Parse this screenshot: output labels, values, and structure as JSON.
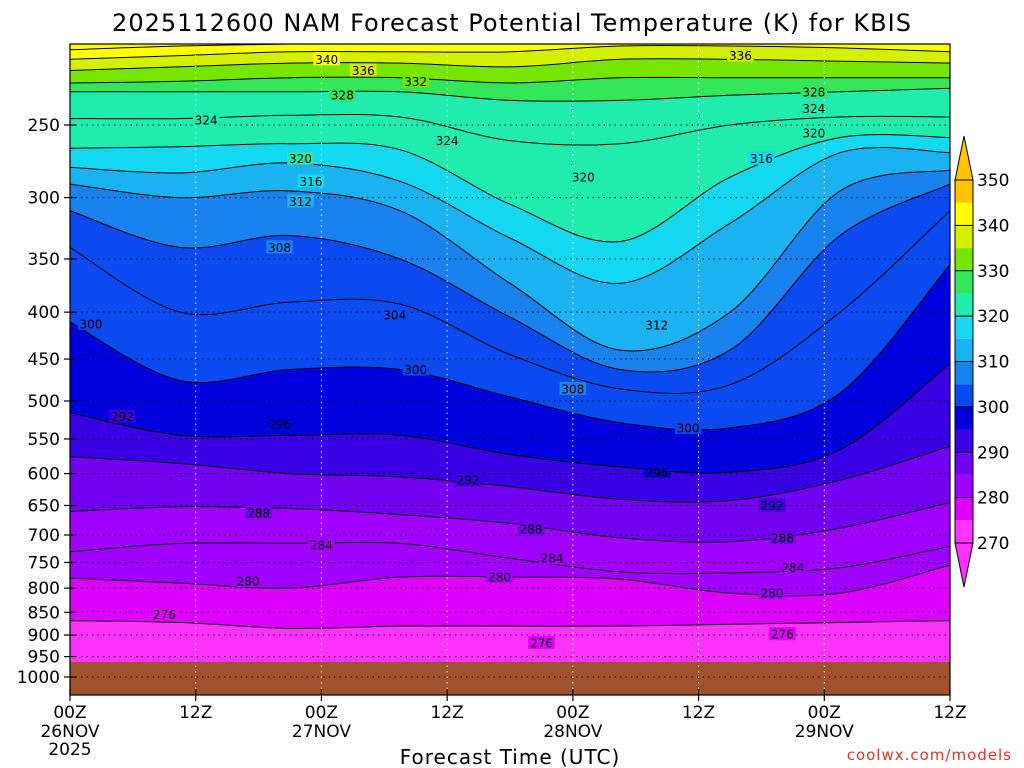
{
  "title": "2025112600 NAM Forecast Potential Temperature (K) for KBIS",
  "xlabel": "Forecast Time (UTC)",
  "credit": "coolwx.com/models",
  "colors": {
    "bands": [
      "#ff33ff",
      "#dd00ff",
      "#a000ff",
      "#7400f2",
      "#3a00e4",
      "#0000dc",
      "#0a4af0",
      "#1a82ee",
      "#1ab2f0",
      "#14d8f0",
      "#20ecb0",
      "#33e65a",
      "#74e600",
      "#d2f000",
      "#ffff00",
      "#ffc400"
    ],
    "ground": "#a0522d"
  },
  "chart_data": {
    "type": "contour",
    "variable": "Potential Temperature (K)",
    "y_axis": {
      "label": "",
      "ticks": [
        250,
        300,
        350,
        400,
        450,
        500,
        550,
        600,
        650,
        700,
        750,
        800,
        850,
        900,
        950,
        1000
      ],
      "range": [
        200,
        1030
      ]
    },
    "x_axis": {
      "ticks": [
        {
          "hour": 0,
          "label": "00Z",
          "sub": "26NOV",
          "sub2": "2025"
        },
        {
          "hour": 12,
          "label": "12Z",
          "sub": "",
          "sub2": ""
        },
        {
          "hour": 24,
          "label": "00Z",
          "sub": "27NOV",
          "sub2": ""
        },
        {
          "hour": 36,
          "label": "12Z",
          "sub": "",
          "sub2": ""
        },
        {
          "hour": 48,
          "label": "00Z",
          "sub": "28NOV",
          "sub2": ""
        },
        {
          "hour": 60,
          "label": "12Z",
          "sub": "",
          "sub2": ""
        },
        {
          "hour": 72,
          "label": "00Z",
          "sub": "29NOV",
          "sub2": ""
        },
        {
          "hour": 84,
          "label": "12Z",
          "sub": "",
          "sub2": ""
        }
      ],
      "range": [
        0,
        84
      ]
    },
    "colorbar": {
      "labels": [
        270,
        280,
        290,
        300,
        310,
        320,
        330,
        340,
        350
      ]
    },
    "isentropes": [
      {
        "theta": 276,
        "p": [
          868,
          872,
          885,
          880,
          880,
          880,
          876,
          872,
          868
        ]
      },
      {
        "theta": 280,
        "p": [
          780,
          790,
          800,
          778,
          778,
          782,
          810,
          810,
          755
        ]
      },
      {
        "theta": 284,
        "p": [
          730,
          715,
          715,
          715,
          742,
          768,
          770,
          760,
          720
        ]
      },
      {
        "theta": 288,
        "p": [
          660,
          652,
          655,
          665,
          680,
          705,
          712,
          688,
          645
        ]
      },
      {
        "theta": 292,
        "p": [
          575,
          585,
          600,
          605,
          620,
          640,
          642,
          610,
          560
        ]
      },
      {
        "theta": 296,
        "p": [
          515,
          545,
          545,
          545,
          572,
          590,
          598,
          565,
          455
        ]
      },
      {
        "theta": 300,
        "p": [
          410,
          475,
          462,
          462,
          495,
          528,
          535,
          490,
          355
        ]
      },
      {
        "theta": 304,
        "p": [
          340,
          400,
          390,
          392,
          445,
          485,
          480,
          400,
          310
        ]
      },
      {
        "theta": 308,
        "p": [
          310,
          340,
          330,
          350,
          405,
          462,
          440,
          330,
          290
        ]
      },
      {
        "theta": 312,
        "p": [
          290,
          300,
          295,
          310,
          372,
          440,
          400,
          295,
          280
        ]
      },
      {
        "theta": 316,
        "p": [
          278,
          282,
          275,
          288,
          332,
          372,
          320,
          268,
          268
        ]
      },
      {
        "theta": 320,
        "p": [
          265,
          264,
          262,
          266,
          305,
          335,
          285,
          258,
          258
        ]
      },
      {
        "theta": 324,
        "p": [
          246,
          246,
          244,
          245,
          260,
          262,
          250,
          245,
          245
        ]
      },
      {
        "theta": 328,
        "p": [
          230,
          230,
          230,
          230,
          235,
          235,
          232,
          230,
          228
        ]
      },
      {
        "theta": 332,
        "p": [
          225,
          224,
          222,
          222,
          225,
          222,
          222,
          222,
          222
        ]
      },
      {
        "theta": 336,
        "p": [
          218,
          216,
          214,
          214,
          216,
          212,
          212,
          213,
          214
        ]
      },
      {
        "theta": 340,
        "p": [
          212,
          210,
          208,
          208,
          208,
          205,
          205,
          206,
          208
        ]
      },
      {
        "theta": 344,
        "p": [
          207,
          205,
          204,
          203,
          203,
          201,
          201,
          202,
          203
        ]
      },
      {
        "theta": 348,
        "p": [
          204,
          202,
          201,
          200,
          200,
          199,
          199,
          199,
          200
        ]
      }
    ],
    "isentrope_hours": [
      0,
      10.5,
      21,
      31.5,
      42,
      52.5,
      63,
      73.5,
      84
    ],
    "contour_labels": [
      {
        "theta": 340,
        "hour": 24.5,
        "p": 212
      },
      {
        "theta": 336,
        "hour": 28,
        "p": 218
      },
      {
        "theta": 332,
        "hour": 33,
        "p": 224
      },
      {
        "theta": 328,
        "hour": 26,
        "p": 232
      },
      {
        "theta": 324,
        "hour": 13,
        "p": 247
      },
      {
        "theta": 324,
        "hour": 36,
        "p": 260
      },
      {
        "theta": 336,
        "hour": 64,
        "p": 210
      },
      {
        "theta": 328,
        "hour": 71,
        "p": 230
      },
      {
        "theta": 324,
        "hour": 71,
        "p": 240
      },
      {
        "theta": 320,
        "hour": 71,
        "p": 255
      },
      {
        "theta": 316,
        "hour": 66,
        "p": 272
      },
      {
        "theta": 320,
        "hour": 49,
        "p": 285
      },
      {
        "theta": 320,
        "hour": 22,
        "p": 272
      },
      {
        "theta": 316,
        "hour": 23,
        "p": 288
      },
      {
        "theta": 312,
        "hour": 22,
        "p": 303
      },
      {
        "theta": 308,
        "hour": 20,
        "p": 340
      },
      {
        "theta": 304,
        "hour": 31,
        "p": 403
      },
      {
        "theta": 300,
        "hour": 2,
        "p": 412
      },
      {
        "theta": 300,
        "hour": 33,
        "p": 462
      },
      {
        "theta": 312,
        "hour": 56,
        "p": 413
      },
      {
        "theta": 308,
        "hour": 48,
        "p": 485
      },
      {
        "theta": 300,
        "hour": 59,
        "p": 535
      },
      {
        "theta": 296,
        "hour": 20,
        "p": 530
      },
      {
        "theta": 292,
        "hour": 5,
        "p": 520
      },
      {
        "theta": 296,
        "hour": 56,
        "p": 598
      },
      {
        "theta": 292,
        "hour": 38,
        "p": 610
      },
      {
        "theta": 292,
        "hour": 67,
        "p": 650
      },
      {
        "theta": 288,
        "hour": 18,
        "p": 662
      },
      {
        "theta": 288,
        "hour": 44,
        "p": 690
      },
      {
        "theta": 288,
        "hour": 68,
        "p": 705
      },
      {
        "theta": 284,
        "hour": 24,
        "p": 718
      },
      {
        "theta": 284,
        "hour": 46,
        "p": 742
      },
      {
        "theta": 284,
        "hour": 69,
        "p": 760
      },
      {
        "theta": 280,
        "hour": 17,
        "p": 786
      },
      {
        "theta": 280,
        "hour": 41,
        "p": 778
      },
      {
        "theta": 280,
        "hour": 67,
        "p": 810
      },
      {
        "theta": 276,
        "hour": 9,
        "p": 855
      },
      {
        "theta": 276,
        "hour": 45,
        "p": 918
      },
      {
        "theta": 276,
        "hour": 68,
        "p": 898
      }
    ],
    "ground_level_p": 963
  }
}
